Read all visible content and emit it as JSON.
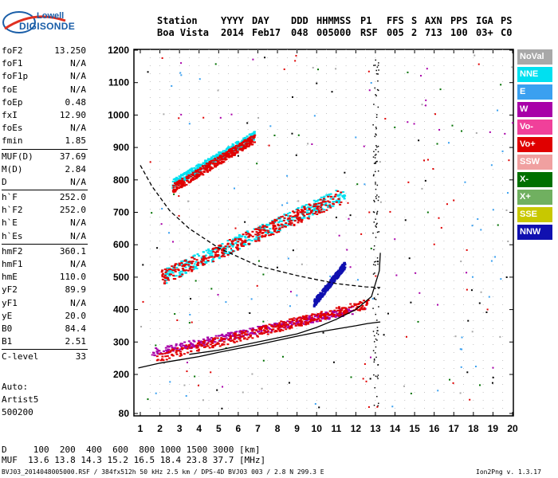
{
  "logo": {
    "line1": "Lowell",
    "line2": "DIGISONDE"
  },
  "header": {
    "labels": [
      "Station",
      "YYYY",
      "DAY",
      "DDD",
      "HHMMSS",
      "P1",
      "FFS",
      "S",
      "AXN",
      "PPS",
      "IGA",
      "PS"
    ],
    "values": [
      "Boa Vista",
      "2014",
      "Feb17",
      "048",
      "005000",
      "RSF",
      "005",
      "2",
      "713",
      "100",
      "03+",
      "C0"
    ]
  },
  "params": [
    {
      "k": "foF2",
      "v": "13.250"
    },
    {
      "k": "foF1",
      "v": "N/A"
    },
    {
      "k": "foF1p",
      "v": "N/A"
    },
    {
      "k": "foE",
      "v": "N/A"
    },
    {
      "k": "foEp",
      "v": "0.48"
    },
    {
      "k": "fxI",
      "v": "12.90"
    },
    {
      "k": "foEs",
      "v": "N/A"
    },
    {
      "k": "fmin",
      "v": "1.85"
    },
    {
      "k": "MUF(D)",
      "v": "37.69"
    },
    {
      "k": "M(D)",
      "v": "2.84"
    },
    {
      "k": "D",
      "v": "N/A"
    },
    {
      "k": "h`F",
      "v": "252.0"
    },
    {
      "k": "h`F2",
      "v": "252.0"
    },
    {
      "k": "h`E",
      "v": "N/A"
    },
    {
      "k": "h`Es",
      "v": "N/A"
    },
    {
      "k": "hmF2",
      "v": "360.1"
    },
    {
      "k": "hmF1",
      "v": "N/A"
    },
    {
      "k": "hmE",
      "v": "110.0"
    },
    {
      "k": "yF2",
      "v": "89.9"
    },
    {
      "k": "yF1",
      "v": "N/A"
    },
    {
      "k": "yE",
      "v": "20.0"
    },
    {
      "k": "B0",
      "v": "84.4"
    },
    {
      "k": "B1",
      "v": "2.51"
    },
    {
      "k": "C-level",
      "v": "33"
    }
  ],
  "misc": [
    "Auto:",
    "Artist5",
    "500200"
  ],
  "legend": [
    {
      "label": "NoVal",
      "color": "#a8a8a8"
    },
    {
      "label": "NNE",
      "color": "#00e0f0"
    },
    {
      "label": "E",
      "color": "#3aa0f0"
    },
    {
      "label": "W",
      "color": "#a800a8"
    },
    {
      "label": "Vo-",
      "color": "#f0409a"
    },
    {
      "label": "Vo+",
      "color": "#e00000"
    },
    {
      "label": "SSW",
      "color": "#f0a0a0"
    },
    {
      "label": "X-",
      "color": "#007000"
    },
    {
      "label": "X+",
      "color": "#70b060"
    },
    {
      "label": "SSE",
      "color": "#c8c800"
    },
    {
      "label": "NNW",
      "color": "#1010b0"
    }
  ],
  "footer": {
    "d_label": "D",
    "d_values": "100  200  400  600  800 1000 1500 3000 [km]",
    "muf_label": "MUF",
    "muf_values": "13.6 13.8 14.3 15.2 16.5 18.4 23.8 37.7 [MHz]",
    "info": "BVJ03_2014048005000.RSF / 384fx512h 50 kHz 2.5 km / DPS-4D BVJ03 003 / 2.8 N 299.3 E",
    "version": "Ion2Png v. 1.3.17"
  },
  "chart_data": {
    "type": "scatter",
    "title": "",
    "xlabel": "",
    "ylabel": "",
    "xlim": [
      0.85,
      20.2
    ],
    "ylim": [
      80,
      1200
    ],
    "xticks": [
      1,
      2,
      3,
      4,
      5,
      6,
      7,
      8,
      9,
      10,
      11,
      12,
      13,
      14,
      15,
      16,
      17,
      18,
      19,
      20
    ],
    "yticks": [
      80,
      200,
      300,
      400,
      500,
      600,
      700,
      800,
      900,
      1000,
      1100,
      1200
    ],
    "grid": true,
    "series": [
      {
        "name": "",
        "mode": "o-trace",
        "color": "#000000",
        "x": [
          0.9,
          2,
          3,
          4,
          5,
          6,
          7,
          8,
          9,
          10,
          11,
          12,
          12.6,
          13.0,
          13.25
        ],
        "y": [
          220,
          235,
          245,
          255,
          268,
          280,
          292,
          305,
          318,
          330,
          340,
          350,
          357,
          360,
          362
        ]
      },
      {
        "name": "",
        "mode": "x-trace",
        "color": "#000000",
        "x": [
          3.5,
          5,
          7,
          9,
          10,
          11,
          12,
          12.8,
          13.2,
          13.25
        ],
        "y": [
          262,
          275,
          300,
          325,
          345,
          370,
          400,
          440,
          520,
          575
        ]
      },
      {
        "name": "",
        "mode": "dashed",
        "color": "#000000",
        "x": [
          1,
          1.6,
          2.5,
          3.5,
          5,
          7,
          9,
          11,
          12.5,
          13.25
        ],
        "y": [
          845,
          780,
          705,
          650,
          590,
          535,
          505,
          480,
          470,
          468
        ]
      }
    ],
    "clusters": [
      {
        "color": "#a800a8",
        "x0": 1.6,
        "x1": 11.8,
        "y0": 270,
        "y1": 400
      },
      {
        "color": "#e00000",
        "x0": 1.8,
        "x1": 12.6,
        "y0": 255,
        "y1": 420
      },
      {
        "color": "#00e0f0",
        "x0": 2.2,
        "x1": 11.4,
        "y0": 505,
        "y1": 760
      },
      {
        "color": "#e00000",
        "x0": 2.0,
        "x1": 11.2,
        "y0": 500,
        "y1": 750
      },
      {
        "color": "#00e0f0",
        "x0": 2.6,
        "x1": 6.8,
        "y0": 790,
        "y1": 940
      },
      {
        "color": "#e00000",
        "x0": 2.6,
        "x1": 6.8,
        "y0": 775,
        "y1": 930
      },
      {
        "color": "#1010b0",
        "x0": 9.8,
        "x1": 11.4,
        "y0": 420,
        "y1": 540
      }
    ]
  }
}
